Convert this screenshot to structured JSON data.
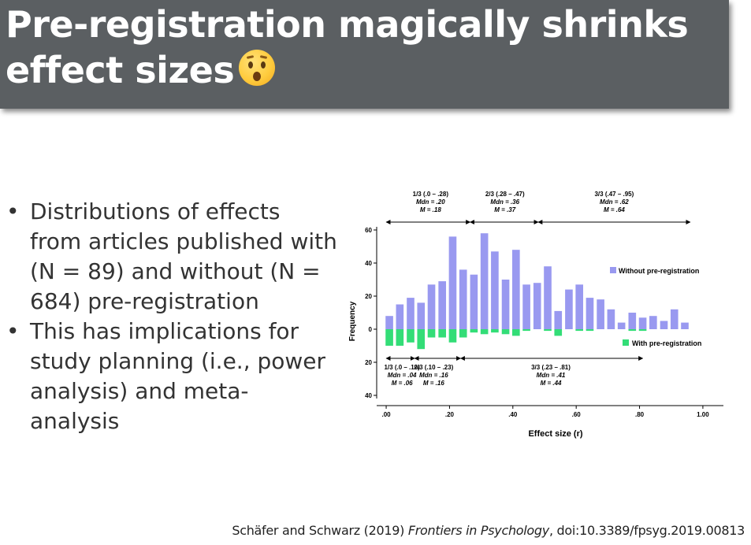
{
  "title": {
    "line1": "Pre-registration magically shrinks",
    "line2": "effect sizes",
    "emoji": "hushed-face-icon"
  },
  "bullets": [
    {
      "marker": "•",
      "text": "Distributions of effects from articles published with (N = 89) and without (N = 684) pre-registration"
    },
    {
      "marker": "•",
      "text": "This has implications for study planning (i.e., power analysis) and meta-analysis"
    }
  ],
  "chart_data": {
    "type": "bar",
    "xlabel": "Effect size (r)",
    "ylabel": "Frequency",
    "xlim": [
      -0.03,
      1.04
    ],
    "ylim": [
      -40,
      60
    ],
    "x_ticks": [
      ".00",
      ".20",
      ".40",
      ".60",
      ".80",
      "1.00"
    ],
    "x_tick_values": [
      0,
      0.2,
      0.4,
      0.6,
      0.8,
      1.0
    ],
    "y_ticks_top": [
      "60",
      "40",
      "20",
      "0"
    ],
    "y_ticks_top_values": [
      60,
      40,
      20,
      0
    ],
    "y_ticks_bottom": [
      "20",
      "40"
    ],
    "y_ticks_bottom_values": [
      -20,
      -40
    ],
    "bin_width": 0.0333,
    "x": [
      0.01,
      0.043,
      0.077,
      0.11,
      0.143,
      0.177,
      0.21,
      0.243,
      0.277,
      0.31,
      0.343,
      0.377,
      0.41,
      0.443,
      0.477,
      0.51,
      0.543,
      0.577,
      0.61,
      0.643,
      0.677,
      0.71,
      0.743,
      0.777,
      0.81,
      0.843,
      0.877,
      0.91,
      0.943
    ],
    "series": [
      {
        "name": "Without pre-registration",
        "color": "#9999f0",
        "values": [
          8,
          15,
          19,
          16,
          27,
          29,
          56,
          36,
          33,
          58,
          47,
          30,
          48,
          27,
          28,
          38,
          11,
          24,
          27,
          19,
          18,
          12,
          4,
          10,
          7,
          8,
          5,
          12,
          4
        ]
      },
      {
        "name": "With pre-registration",
        "color": "#33dd77",
        "values": [
          -10,
          -10,
          -8,
          -12,
          -5,
          -5,
          -8,
          -5,
          -2,
          -3,
          -2,
          -3,
          -4,
          -1,
          0,
          -1,
          -4,
          0,
          -1,
          -1,
          0,
          0,
          0,
          -1,
          -1,
          0,
          0,
          0,
          0
        ]
      }
    ],
    "legend": [
      {
        "label": "Without pre-registration",
        "color": "#9999f0"
      },
      {
        "label": "With pre-registration",
        "color": "#33dd77"
      }
    ],
    "legend_position": "right",
    "top_annotations": [
      {
        "lines": [
          "1/3 (.0 – .28)",
          "Mdn = .20",
          "M = .18"
        ],
        "center": 0.14,
        "range": [
          0.0,
          0.265
        ]
      },
      {
        "lines": [
          "2/3 (.28 – .47)",
          "Mdn = .36",
          "M = .37"
        ],
        "center": 0.375,
        "range": [
          0.265,
          0.48
        ]
      },
      {
        "lines": [
          "3/3 (.47 – .95)",
          "Mdn = .62",
          "M = .64"
        ],
        "center": 0.72,
        "range": [
          0.48,
          0.96
        ]
      }
    ],
    "bottom_annotations": [
      {
        "lines": [
          "1/3 (.0 – .10)",
          "Mdn = .04",
          "M = .06"
        ],
        "center": 0.05,
        "range": [
          0.0,
          0.09
        ]
      },
      {
        "lines": [
          "2/3 (.10 – .23)",
          "Mdn = .16",
          "M = .16"
        ],
        "center": 0.15,
        "range": [
          0.09,
          0.235
        ]
      },
      {
        "lines": [
          "3/3 (.23 – .81)",
          "Mdn = .41",
          "M = .44"
        ],
        "center": 0.52,
        "range": [
          0.235,
          0.81
        ]
      }
    ]
  },
  "citation": {
    "authors": "Schäfer and Schwarz (2019)",
    "journal": "Frontiers in Psychology",
    "doi": ", doi:10.3389/fpsyg.2019.00813"
  }
}
